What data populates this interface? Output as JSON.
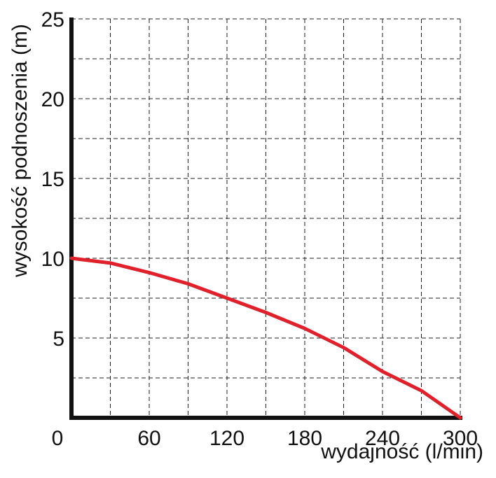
{
  "chart_data": {
    "type": "line",
    "x_label": "wydajność (l/min)",
    "y_label": "wysokość podnoszenia (m)",
    "x": [
      0,
      30,
      60,
      90,
      120,
      150,
      180,
      210,
      240,
      270,
      300
    ],
    "series": [
      {
        "color": "#e0202a",
        "values": [
          10,
          9.7,
          9.1,
          8.4,
          7.5,
          6.6,
          5.6,
          4.4,
          2.9,
          1.7,
          0
        ]
      }
    ],
    "xlim": [
      0,
      300
    ],
    "xticks": [
      0,
      60,
      120,
      180,
      240,
      300
    ],
    "ylim": [
      0,
      25
    ],
    "yticks": [
      5,
      10,
      15,
      20,
      25
    ],
    "grid": true
  }
}
